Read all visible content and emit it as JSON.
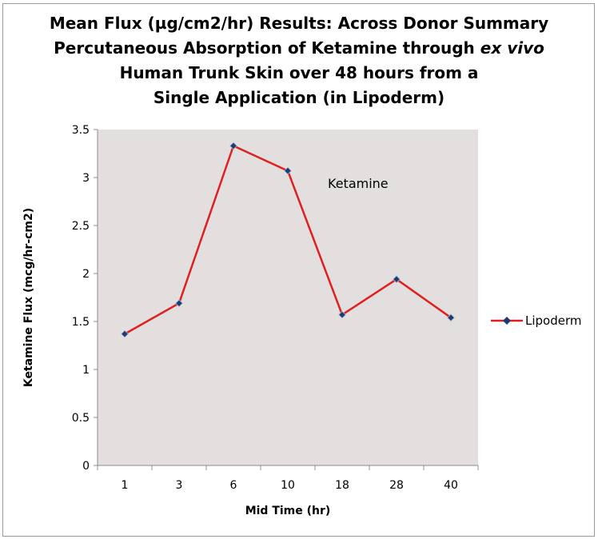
{
  "chart_data": {
    "type": "line",
    "title": {
      "line1": "Mean Flux (µg/cm2/hr) Results: Across Donor Summary",
      "line2_prefix": "Percutaneous Absorption of Ketamine through ",
      "line2_italic": "ex vivo",
      "line3": "Human Trunk Skin over 48 hours from a",
      "line4": "Single Application (in Lipoderm)"
    },
    "xlabel": "Mid Time (hr)",
    "ylabel": "Ketamine Flux (mcg/hr-cm2)",
    "categories": [
      "1",
      "3",
      "6",
      "10",
      "18",
      "28",
      "40"
    ],
    "series": [
      {
        "name": "Lipoderm",
        "values": [
          1.37,
          1.69,
          3.33,
          3.07,
          1.57,
          1.94,
          1.54
        ],
        "color": "#e02020",
        "marker_color": "#1f3a6e"
      }
    ],
    "ylim": [
      0,
      3.5
    ],
    "yticks": [
      "0",
      "0.5",
      "1",
      "1.5",
      "2",
      "2.5",
      "3",
      "3.5"
    ],
    "annotation": "Ketamine",
    "plot_background": "#e3dfdf",
    "grid": false,
    "legend_position": "right"
  }
}
